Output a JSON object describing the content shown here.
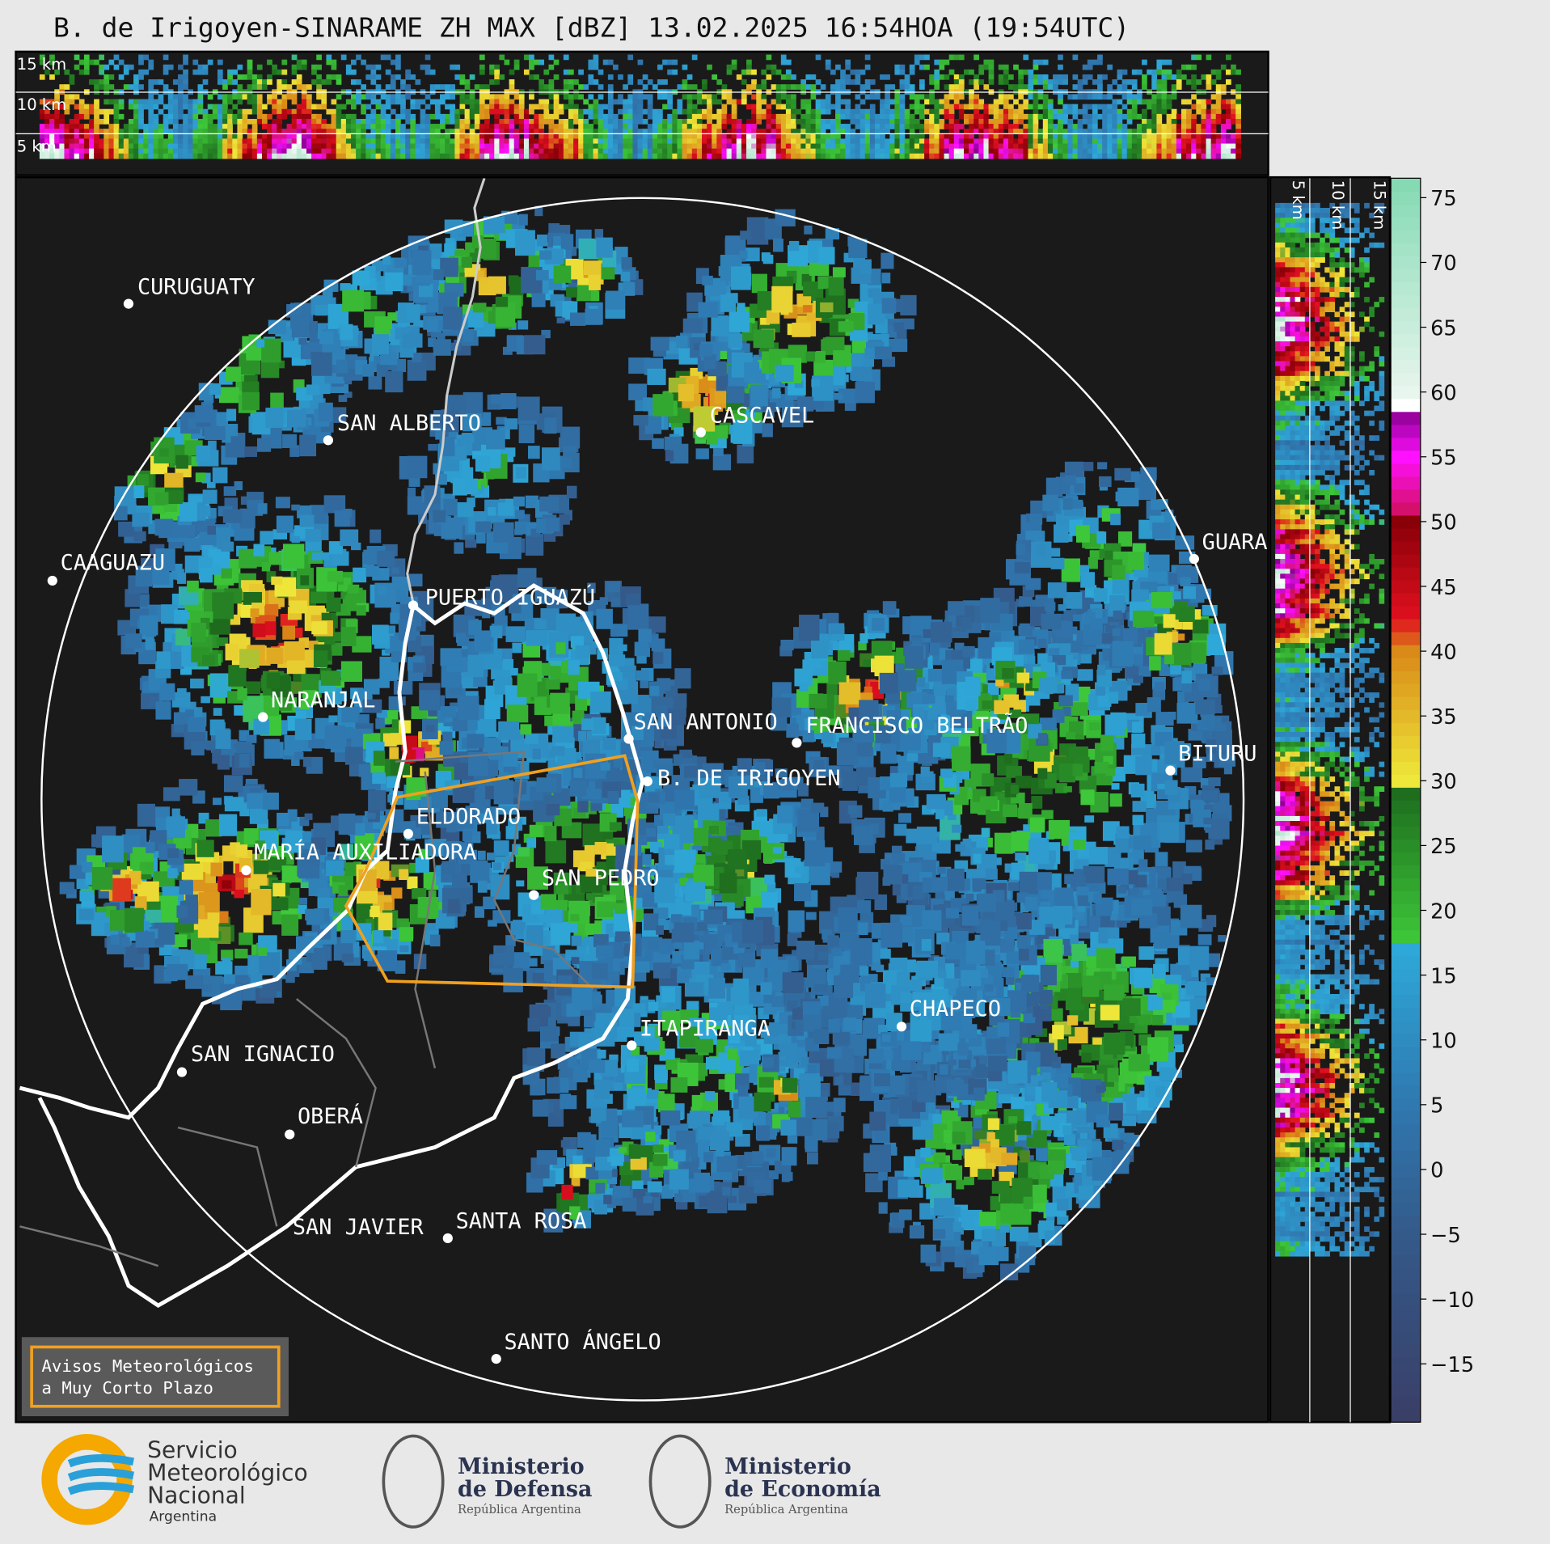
{
  "title": "B. de Irigoyen-SINARAME ZH MAX [dBZ] 13.02.2025 16:54HOA (19:54UTC)",
  "top_section": {
    "height_labels": [
      "15 km",
      "10 km",
      "5 km"
    ]
  },
  "side_section": {
    "height_labels": [
      "5 km",
      "10 km",
      "15 km"
    ]
  },
  "colorbar": {
    "lim": [
      -19.5,
      76.5
    ],
    "ticks": [
      75,
      70,
      65,
      60,
      55,
      50,
      45,
      40,
      35,
      30,
      25,
      20,
      15,
      10,
      5,
      0,
      {
        "value": -5,
        "label": "−5"
      },
      {
        "value": -10,
        "label": "−10"
      },
      {
        "value": -15,
        "label": "−15"
      }
    ]
  },
  "cities": [
    "CURUGUATY",
    "SAN ALBERTO",
    "CAAGUAZU",
    "PUERTO IGUAZÚ",
    "NARANJAL",
    "SAN ANTONIO",
    "FRANCISCO BELTRÃO",
    "B. DE IRIGOYEN",
    "GUARA",
    "BITURU",
    "ELDORADO",
    "MARÍA AUXILIADORA",
    "SAN PEDRO",
    "CASCAVEL",
    "ITAPIRANGA",
    "CHAPECO",
    "SAN IGNACIO",
    "OBERÁ",
    "SAN JAVIER",
    "SANTA ROSA",
    "SANTO ÁNGELO"
  ],
  "notice": [
    "Avisos Meteorológicos",
    "a Muy Corto Plazo"
  ],
  "logos": [
    {
      "lines": [
        "Servicio",
        "Meteorológico",
        "Nacional",
        "Argentina"
      ]
    },
    {
      "lines": [
        "Ministerio",
        "de Defensa",
        "República Argentina"
      ]
    },
    {
      "lines": [
        "Ministerio",
        "de Economía",
        "República Argentina"
      ]
    }
  ]
}
